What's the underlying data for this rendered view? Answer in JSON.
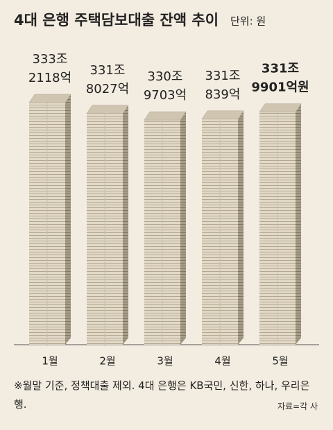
{
  "chart_data": {
    "type": "bar",
    "title": "4대 은행 주택담보대출 잔액 추이",
    "unit": "단위: 원",
    "categories": [
      "1월",
      "2월",
      "3월",
      "4월",
      "5월"
    ],
    "values": [
      3332118,
      3318027,
      3309703,
      3310839,
      3319901
    ],
    "value_labels": [
      [
        "333조",
        "2118억"
      ],
      [
        "331조",
        "8027억"
      ],
      [
        "330조",
        "9703억"
      ],
      [
        "331조",
        "839억"
      ],
      [
        "331조",
        "9901억원"
      ]
    ],
    "highlight": 4,
    "color": "#e2d9c8",
    "note": "※월말 기준, 정책대출 제외. 4대 은행은 KB국민, 신한, 하나, 우리은행.",
    "source": "자료=각 사"
  }
}
